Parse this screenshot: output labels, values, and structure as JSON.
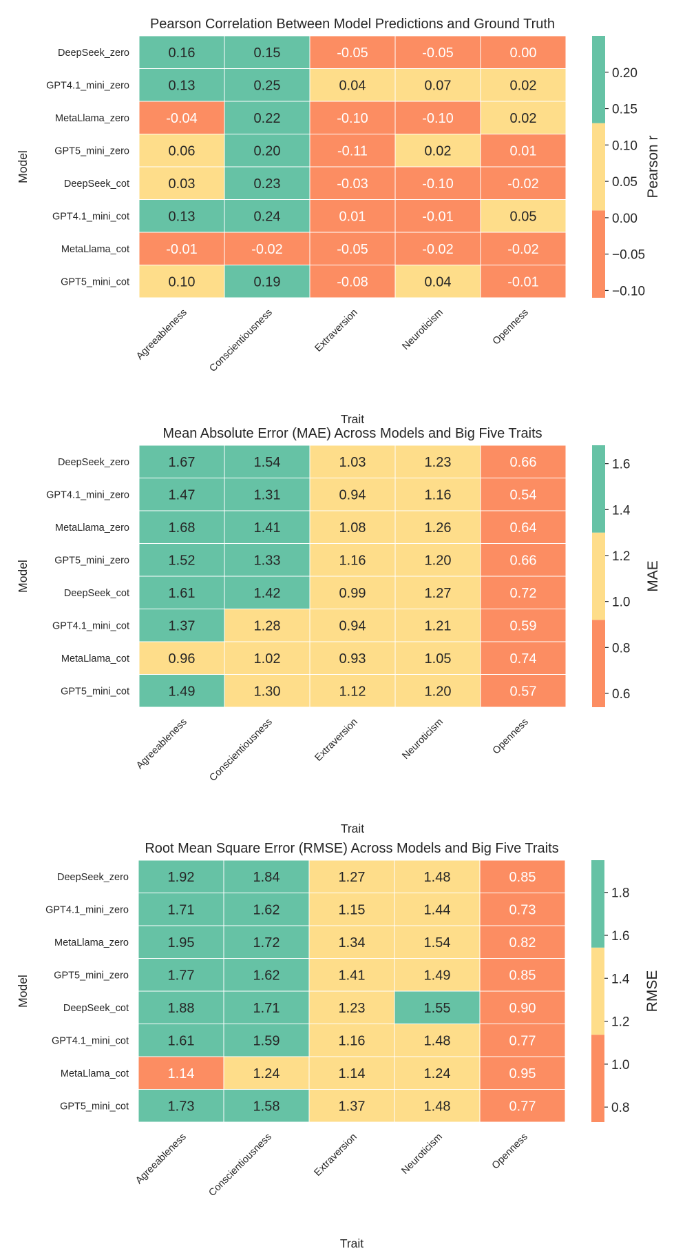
{
  "chart_data": [
    {
      "type": "heatmap",
      "title": "Pearson Correlation Between Model Predictions and Ground Truth",
      "xlabel": "Trait",
      "ylabel": "Model",
      "colorbar_label": "Pearson r",
      "x": [
        "Agreeableness",
        "Conscientiousness",
        "Extraversion",
        "Neuroticism",
        "Openness"
      ],
      "y": [
        "DeepSeek_zero",
        "GPT4.1_mini_zero",
        "MetaLlama_zero",
        "GPT5_mini_zero",
        "DeepSeek_cot",
        "GPT4.1_mini_cot",
        "MetaLlama_cot",
        "GPT5_mini_cot"
      ],
      "values": [
        [
          0.16,
          0.15,
          -0.05,
          -0.05,
          0.0
        ],
        [
          0.13,
          0.25,
          0.04,
          0.07,
          0.02
        ],
        [
          -0.04,
          0.22,
          -0.1,
          -0.1,
          0.02
        ],
        [
          0.06,
          0.2,
          -0.11,
          0.02,
          0.01
        ],
        [
          0.03,
          0.23,
          -0.03,
          -0.1,
          -0.02
        ],
        [
          0.13,
          0.24,
          0.01,
          -0.01,
          0.05
        ],
        [
          -0.01,
          -0.02,
          -0.05,
          -0.02,
          -0.02
        ],
        [
          0.1,
          0.19,
          -0.08,
          0.04,
          -0.01
        ]
      ],
      "levels": [
        [
          2,
          2,
          0,
          0,
          0
        ],
        [
          2,
          2,
          1,
          1,
          1
        ],
        [
          0,
          2,
          0,
          0,
          1
        ],
        [
          1,
          2,
          0,
          1,
          0
        ],
        [
          1,
          2,
          0,
          0,
          0
        ],
        [
          2,
          2,
          0,
          0,
          1
        ],
        [
          0,
          0,
          0,
          0,
          0
        ],
        [
          1,
          2,
          0,
          1,
          0
        ]
      ],
      "vlim": [
        -0.11,
        0.25
      ],
      "bin_edges": [
        -0.11,
        0.01,
        0.13,
        0.25
      ],
      "colorbar_ticks": [
        "0.20",
        "0.15",
        "0.10",
        "0.05",
        "0.00",
        "−0.05",
        "−0.10"
      ],
      "colorbar_tick_values": [
        0.2,
        0.15,
        0.1,
        0.05,
        0.0,
        -0.05,
        -0.1
      ]
    },
    {
      "type": "heatmap",
      "title": "Mean Absolute Error (MAE) Across Models and Big Five Traits",
      "xlabel": "Trait",
      "ylabel": "Model",
      "colorbar_label": "MAE",
      "x": [
        "Agreeableness",
        "Conscientiousness",
        "Extraversion",
        "Neuroticism",
        "Openness"
      ],
      "y": [
        "DeepSeek_zero",
        "GPT4.1_mini_zero",
        "MetaLlama_zero",
        "GPT5_mini_zero",
        "DeepSeek_cot",
        "GPT4.1_mini_cot",
        "MetaLlama_cot",
        "GPT5_mini_cot"
      ],
      "values": [
        [
          1.67,
          1.54,
          1.03,
          1.23,
          0.66
        ],
        [
          1.47,
          1.31,
          0.94,
          1.16,
          0.54
        ],
        [
          1.68,
          1.41,
          1.08,
          1.26,
          0.64
        ],
        [
          1.52,
          1.33,
          1.16,
          1.2,
          0.66
        ],
        [
          1.61,
          1.42,
          0.99,
          1.27,
          0.72
        ],
        [
          1.37,
          1.28,
          0.94,
          1.21,
          0.59
        ],
        [
          0.96,
          1.02,
          0.93,
          1.05,
          0.74
        ],
        [
          1.49,
          1.3,
          1.12,
          1.2,
          0.57
        ]
      ],
      "levels": [
        [
          2,
          2,
          1,
          1,
          0
        ],
        [
          2,
          2,
          1,
          1,
          0
        ],
        [
          2,
          2,
          1,
          1,
          0
        ],
        [
          2,
          2,
          1,
          1,
          0
        ],
        [
          2,
          2,
          1,
          1,
          0
        ],
        [
          2,
          1,
          1,
          1,
          0
        ],
        [
          1,
          1,
          1,
          1,
          0
        ],
        [
          2,
          1,
          1,
          1,
          0
        ]
      ],
      "vlim": [
        0.54,
        1.68
      ],
      "bin_edges": [
        0.54,
        0.92,
        1.3,
        1.68
      ],
      "colorbar_ticks": [
        "1.6",
        "1.4",
        "1.2",
        "1.0",
        "0.8",
        "0.6"
      ],
      "colorbar_tick_values": [
        1.6,
        1.4,
        1.2,
        1.0,
        0.8,
        0.6
      ]
    },
    {
      "type": "heatmap",
      "title": "Root Mean Square Error (RMSE) Across Models and Big Five Traits",
      "xlabel": "Trait",
      "ylabel": "Model",
      "colorbar_label": "RMSE",
      "x": [
        "Agreeableness",
        "Conscientiousness",
        "Extraversion",
        "Neuroticism",
        "Openness"
      ],
      "y": [
        "DeepSeek_zero",
        "GPT4.1_mini_zero",
        "MetaLlama_zero",
        "GPT5_mini_zero",
        "DeepSeek_cot",
        "GPT4.1_mini_cot",
        "MetaLlama_cot",
        "GPT5_mini_cot"
      ],
      "values": [
        [
          1.92,
          1.84,
          1.27,
          1.48,
          0.85
        ],
        [
          1.71,
          1.62,
          1.15,
          1.44,
          0.73
        ],
        [
          1.95,
          1.72,
          1.34,
          1.54,
          0.82
        ],
        [
          1.77,
          1.62,
          1.41,
          1.49,
          0.85
        ],
        [
          1.88,
          1.71,
          1.23,
          1.55,
          0.9
        ],
        [
          1.61,
          1.59,
          1.16,
          1.48,
          0.77
        ],
        [
          1.14,
          1.24,
          1.14,
          1.24,
          0.95
        ],
        [
          1.73,
          1.58,
          1.37,
          1.48,
          0.77
        ]
      ],
      "levels": [
        [
          2,
          2,
          1,
          1,
          0
        ],
        [
          2,
          2,
          1,
          1,
          0
        ],
        [
          2,
          2,
          1,
          1,
          0
        ],
        [
          2,
          2,
          1,
          1,
          0
        ],
        [
          2,
          2,
          1,
          2,
          0
        ],
        [
          2,
          2,
          1,
          1,
          0
        ],
        [
          0,
          1,
          1,
          1,
          0
        ],
        [
          2,
          2,
          1,
          1,
          0
        ]
      ],
      "vlim": [
        0.73,
        1.95
      ],
      "bin_edges": [
        0.73,
        1.137,
        1.543,
        1.95
      ],
      "colorbar_ticks": [
        "1.8",
        "1.6",
        "1.4",
        "1.2",
        "1.0",
        "0.8"
      ],
      "colorbar_tick_values": [
        1.8,
        1.6,
        1.4,
        1.2,
        1.0,
        0.8
      ]
    }
  ],
  "palette": {
    "low": "#fc8d62",
    "mid": "#fedd8a",
    "high": "#66c2a5",
    "text_dark": "#262626",
    "text_light": "#ffffff"
  }
}
